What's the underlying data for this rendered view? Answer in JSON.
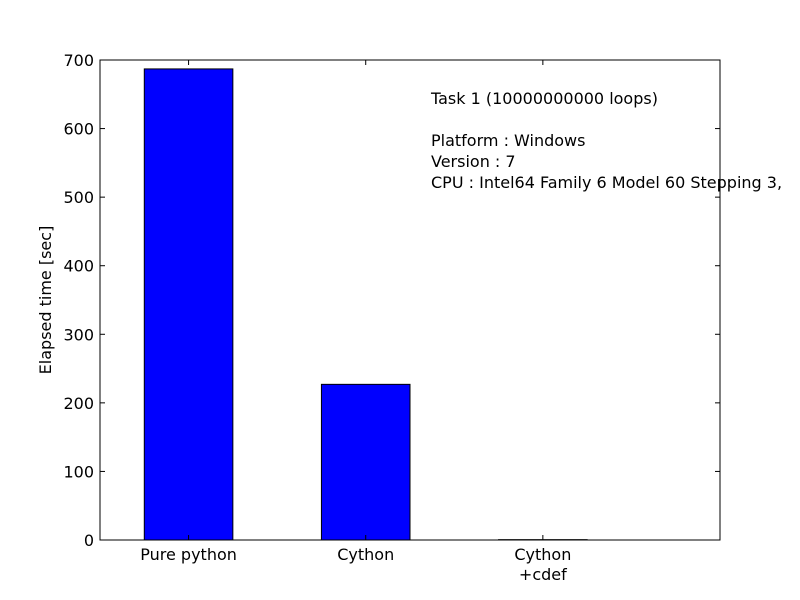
{
  "chart_data": {
    "type": "bar",
    "categories": [
      [
        "Pure python"
      ],
      [
        "Cython"
      ],
      [
        "Cython",
        "+cdef"
      ]
    ],
    "values": [
      687,
      227,
      0.5
    ],
    "bar_color": "#0000ff",
    "ylabel": "Elapsed time [sec]",
    "xlabel": "",
    "ylim": [
      0,
      700
    ],
    "yticks": [
      0,
      100,
      200,
      300,
      400,
      500,
      600,
      700
    ],
    "grid": false,
    "annotation": [
      "Task 1 (10000000000 loops)",
      "",
      "Platform : Windows",
      "Version : 7",
      "CPU : Intel64 Family 6 Model 60 Stepping 3,"
    ]
  }
}
